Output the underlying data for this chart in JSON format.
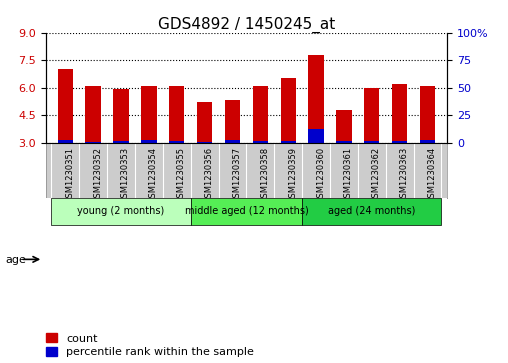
{
  "title": "GDS4892 / 1450245_at",
  "samples": [
    "GSM1230351",
    "GSM1230352",
    "GSM1230353",
    "GSM1230354",
    "GSM1230355",
    "GSM1230356",
    "GSM1230357",
    "GSM1230358",
    "GSM1230359",
    "GSM1230360",
    "GSM1230361",
    "GSM1230362",
    "GSM1230363",
    "GSM1230364"
  ],
  "count_values": [
    7.0,
    6.1,
    5.9,
    6.1,
    6.1,
    5.2,
    5.3,
    6.1,
    6.5,
    7.8,
    4.8,
    6.0,
    6.2,
    6.1
  ],
  "percentile_values": [
    2.0,
    1.0,
    1.5,
    2.0,
    1.5,
    1.0,
    2.0,
    1.5,
    1.5,
    12.0,
    1.5,
    1.5,
    1.5,
    2.0
  ],
  "base_value": 3.0,
  "ylim_left": [
    3,
    9
  ],
  "ylim_right": [
    0,
    100
  ],
  "yticks_left": [
    3,
    4.5,
    6,
    7.5,
    9
  ],
  "yticks_right": [
    0,
    25,
    50,
    75,
    100
  ],
  "groups": [
    {
      "label": "young (2 months)",
      "start": 0,
      "end": 5,
      "color": "#bbffbb"
    },
    {
      "label": "middle aged (12 months)",
      "start": 5,
      "end": 9,
      "color": "#55ee55"
    },
    {
      "label": "aged (24 months)",
      "start": 9,
      "end": 14,
      "color": "#22cc44"
    }
  ],
  "bar_color_count": "#cc0000",
  "bar_color_percentile": "#0000cc",
  "bar_bg_color": "#cccccc",
  "grid_color": "black",
  "title_fontsize": 11,
  "tick_fontsize": 8,
  "label_fontsize": 8,
  "sample_fontsize": 6,
  "age_label": "age",
  "legend_count_label": "count",
  "legend_percentile_label": "percentile rank within the sample"
}
